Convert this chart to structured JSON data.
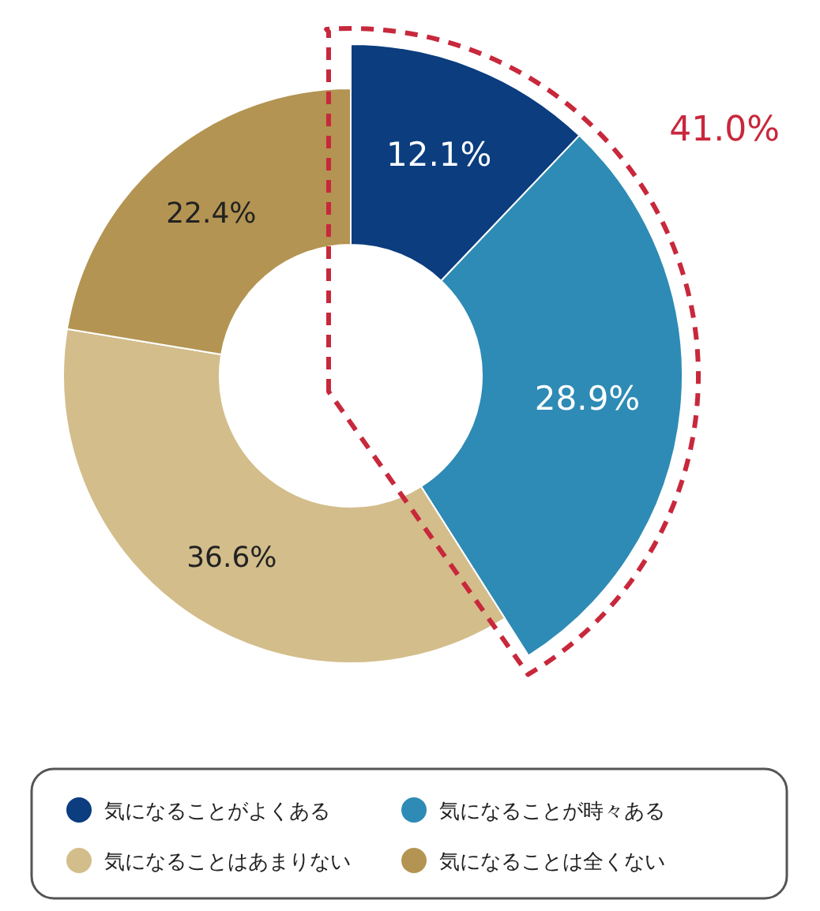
{
  "chart_data": {
    "type": "donut",
    "categories": [
      "気になることがよくある",
      "気になることが時々ある",
      "気になることはあまりない",
      "気になることは全くない"
    ],
    "values": [
      12.1,
      28.9,
      36.6,
      22.4
    ],
    "colors": [
      "#0b3d7f",
      "#2e8bb5",
      "#d3bd8b",
      "#b39452"
    ],
    "value_labels": [
      "12.1%",
      "28.9%",
      "36.6%",
      "22.4%"
    ],
    "annotations": [
      "41.0%"
    ],
    "legend": "bottom"
  }
}
